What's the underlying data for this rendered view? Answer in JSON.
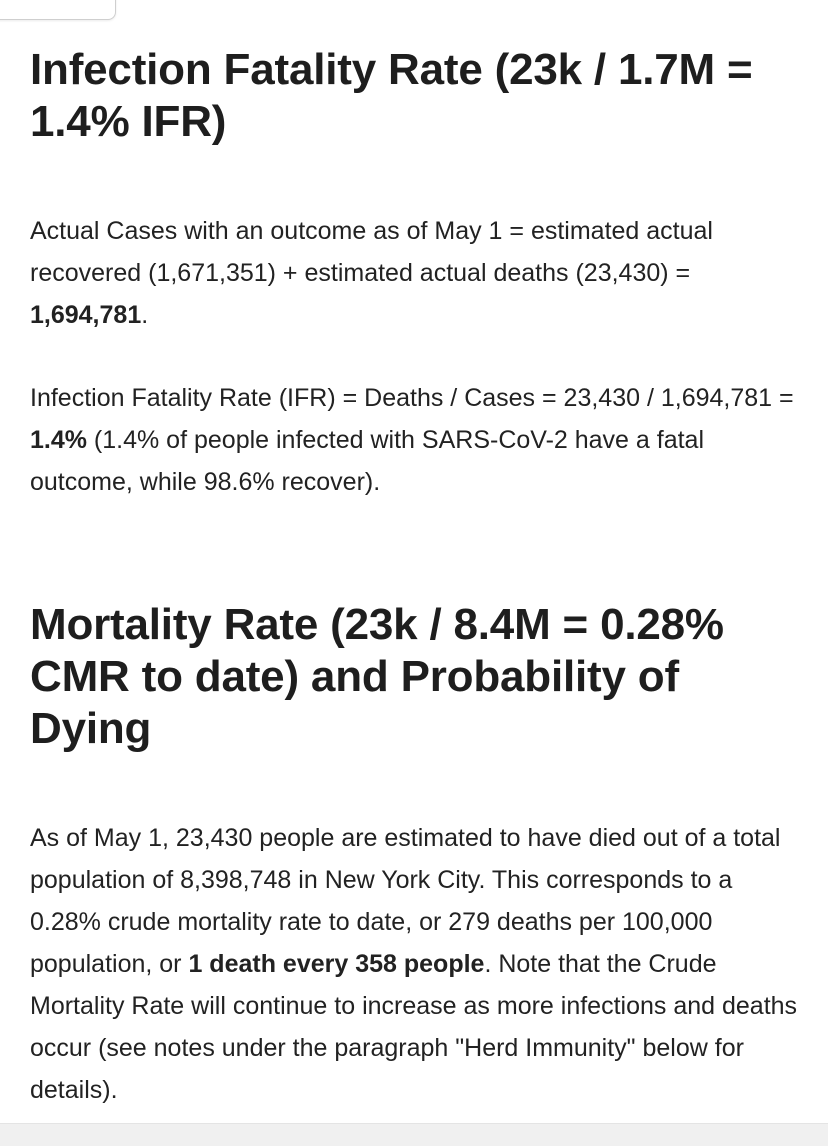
{
  "section_ifr": {
    "heading": "Infection Fatality Rate (23k / 1.7M = 1.4% IFR)",
    "para1_text": "Actual Cases with an outcome as of May 1 = estimated actual recovered (1,671,351) + estimated actual deaths (23,430) = ",
    "para1_bold": "1,694,781",
    "para1_end": ".",
    "para2_text": "Infection Fatality Rate (IFR) = Deaths / Cases = 23,430 / 1,694,781 = ",
    "para2_bold": "1.4%",
    "para2_end": " (1.4% of people infected with SARS-CoV-2 have a fatal outcome, while 98.6% recover)."
  },
  "section_cmr": {
    "heading": "Mortality Rate (23k / 8.4M = 0.28% CMR to date) and Probability of Dying",
    "para_text": "As of May 1, 23,430 people are estimated to have died out of a total population of 8,398,748 in New York City. This corresponds to a 0.28% crude mortality rate to date, or 279 deaths per 100,000 population, or ",
    "para_bold": "1 death every 358 people",
    "para_end": ". Note that the Crude Mortality Rate will continue to increase as more infections and deaths occur (see notes under the paragraph \"Herd Immunity\" below for details)."
  }
}
